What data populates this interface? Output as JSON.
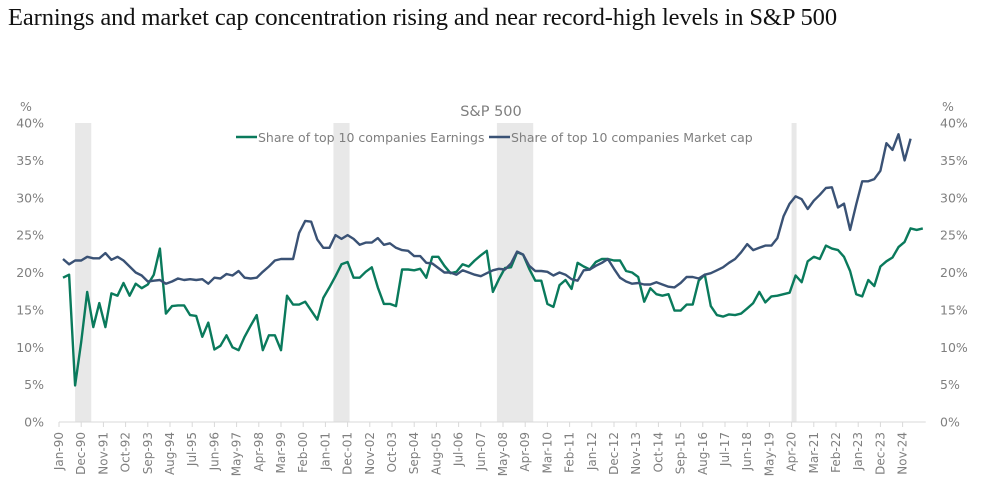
{
  "page": {
    "title": "Earnings and market cap concentration rising and near record-high levels in S&P 500"
  },
  "chart_data": {
    "type": "line",
    "title": "S&P 500",
    "ylabel_left": "%",
    "ylabel_right": "%",
    "ylim": [
      0,
      40
    ],
    "yticks": [
      0,
      5,
      10,
      15,
      20,
      25,
      30,
      35,
      40
    ],
    "ytick_labels": [
      "0%",
      "5%",
      "10%",
      "15%",
      "20%",
      "25%",
      "30%",
      "35%",
      "40%"
    ],
    "legend_position": "top-center",
    "x_start": "Jan-90",
    "x_frequency": "quarterly",
    "x_tick_labels": [
      "Jan-90",
      "Dec-90",
      "Nov-91",
      "Oct-92",
      "Sep-93",
      "Aug-94",
      "Jul-95",
      "Jun-96",
      "May-97",
      "Apr-98",
      "Mar-99",
      "Feb-00",
      "Jan-01",
      "Dec-01",
      "Nov-02",
      "Oct-03",
      "Sep-04",
      "Aug-05",
      "Jul-06",
      "Jun-07",
      "May-08",
      "Apr-09",
      "Mar-10",
      "Feb-11",
      "Jan-12",
      "Dec-12",
      "Nov-13",
      "Oct-14",
      "Sep-15",
      "Aug-16",
      "Jul-17",
      "Jun-18",
      "May-19",
      "Apr-20",
      "Mar-21",
      "Feb-22",
      "Jan-23",
      "Dec-23",
      "Nov-24"
    ],
    "recessions": [
      {
        "start": "Jul-90",
        "end": "Mar-91"
      },
      {
        "start": "Mar-01",
        "end": "Nov-01"
      },
      {
        "start": "Dec-07",
        "end": "Jun-09"
      },
      {
        "start": "Feb-20",
        "end": "Apr-20"
      }
    ],
    "colors": {
      "earnings": "#0a7a5c",
      "market_cap": "#3a5275",
      "recession": "#e8e8e8",
      "text": "#7f7f7f",
      "axis": "#d9d9d9"
    },
    "series": [
      {
        "name": "Share of top 10 companies Earnings",
        "values": [
          19.3,
          19.7,
          4.9,
          10.7,
          17.4,
          12.7,
          15.9,
          12.7,
          17.2,
          16.9,
          18.6,
          16.9,
          18.5,
          17.9,
          18.4,
          19.7,
          23.2,
          14.5,
          15.5,
          15.6,
          15.6,
          14.3,
          14.2,
          11.4,
          13.3,
          9.7,
          10.2,
          11.6,
          10.0,
          9.6,
          11.4,
          12.9,
          14.3,
          9.6,
          11.6,
          11.6,
          9.6,
          16.9,
          15.7,
          15.7,
          16.1,
          14.9,
          13.7,
          16.6,
          18.0,
          19.5,
          21.1,
          21.4,
          19.3,
          19.3,
          20.1,
          20.7,
          18.0,
          15.8,
          15.8,
          15.5,
          20.4,
          20.4,
          20.3,
          20.5,
          19.3,
          22.1,
          22.1,
          20.9,
          19.9,
          20.1,
          21.1,
          20.8,
          21.6,
          22.3,
          22.9,
          17.4,
          19.1,
          20.6,
          20.7,
          22.7,
          22.4,
          20.5,
          18.9,
          18.9,
          15.8,
          15.4,
          18.3,
          19.0,
          17.8,
          21.3,
          20.8,
          20.4,
          21.4,
          21.8,
          21.8,
          21.6,
          21.6,
          20.2,
          20.0,
          19.4,
          16.1,
          17.9,
          17.1,
          16.9,
          17.1,
          14.9,
          14.9,
          15.7,
          15.7,
          18.9,
          19.7,
          15.5,
          14.3,
          14.1,
          14.4,
          14.3,
          14.5,
          15.2,
          15.9,
          17.4,
          16.0,
          16.8,
          16.9,
          17.1,
          17.3,
          19.6,
          18.7,
          21.5,
          22.1,
          21.8,
          23.6,
          23.2,
          23.0,
          22.1,
          20.2,
          17.1,
          16.8,
          19.0,
          18.2,
          20.8,
          21.5,
          22.0,
          23.4,
          24.1,
          25.9,
          25.7,
          25.9
        ]
      },
      {
        "name": "Share of top 10 companies Market cap",
        "values": [
          21.8,
          21.1,
          21.6,
          21.6,
          22.1,
          21.9,
          21.9,
          22.6,
          21.7,
          22.1,
          21.6,
          20.8,
          20.0,
          19.6,
          18.8,
          18.9,
          19.0,
          18.5,
          18.8,
          19.2,
          19.0,
          19.1,
          19.0,
          19.1,
          18.5,
          19.3,
          19.2,
          19.8,
          19.6,
          20.2,
          19.3,
          19.2,
          19.3,
          20.1,
          20.8,
          21.6,
          21.8,
          21.8,
          21.8,
          25.3,
          26.9,
          26.8,
          24.4,
          23.3,
          23.3,
          25.0,
          24.5,
          25.0,
          24.5,
          23.7,
          24.0,
          24.0,
          24.6,
          23.7,
          23.9,
          23.3,
          23.0,
          22.9,
          22.2,
          22.2,
          21.3,
          21.2,
          20.6,
          20.0,
          20.0,
          19.7,
          20.3,
          20.0,
          19.7,
          19.5,
          19.9,
          20.3,
          20.5,
          20.4,
          21.2,
          22.8,
          22.4,
          20.9,
          20.2,
          20.2,
          20.1,
          19.6,
          20.0,
          19.7,
          19.1,
          18.9,
          20.3,
          20.4,
          20.9,
          21.3,
          21.8,
          20.5,
          19.3,
          18.8,
          18.5,
          18.6,
          18.4,
          18.4,
          18.7,
          18.4,
          18.1,
          18.0,
          18.6,
          19.4,
          19.4,
          19.2,
          19.7,
          19.9,
          20.3,
          20.7,
          21.3,
          21.8,
          22.7,
          23.8,
          23.0,
          23.3,
          23.6,
          23.6,
          24.6,
          27.5,
          29.2,
          30.2,
          29.8,
          28.5,
          29.6,
          30.4,
          31.3,
          31.4,
          28.7,
          29.2,
          25.7,
          29.1,
          32.2,
          32.2,
          32.5,
          33.6,
          37.3,
          36.4,
          38.5,
          35.0,
          37.9
        ]
      }
    ]
  }
}
